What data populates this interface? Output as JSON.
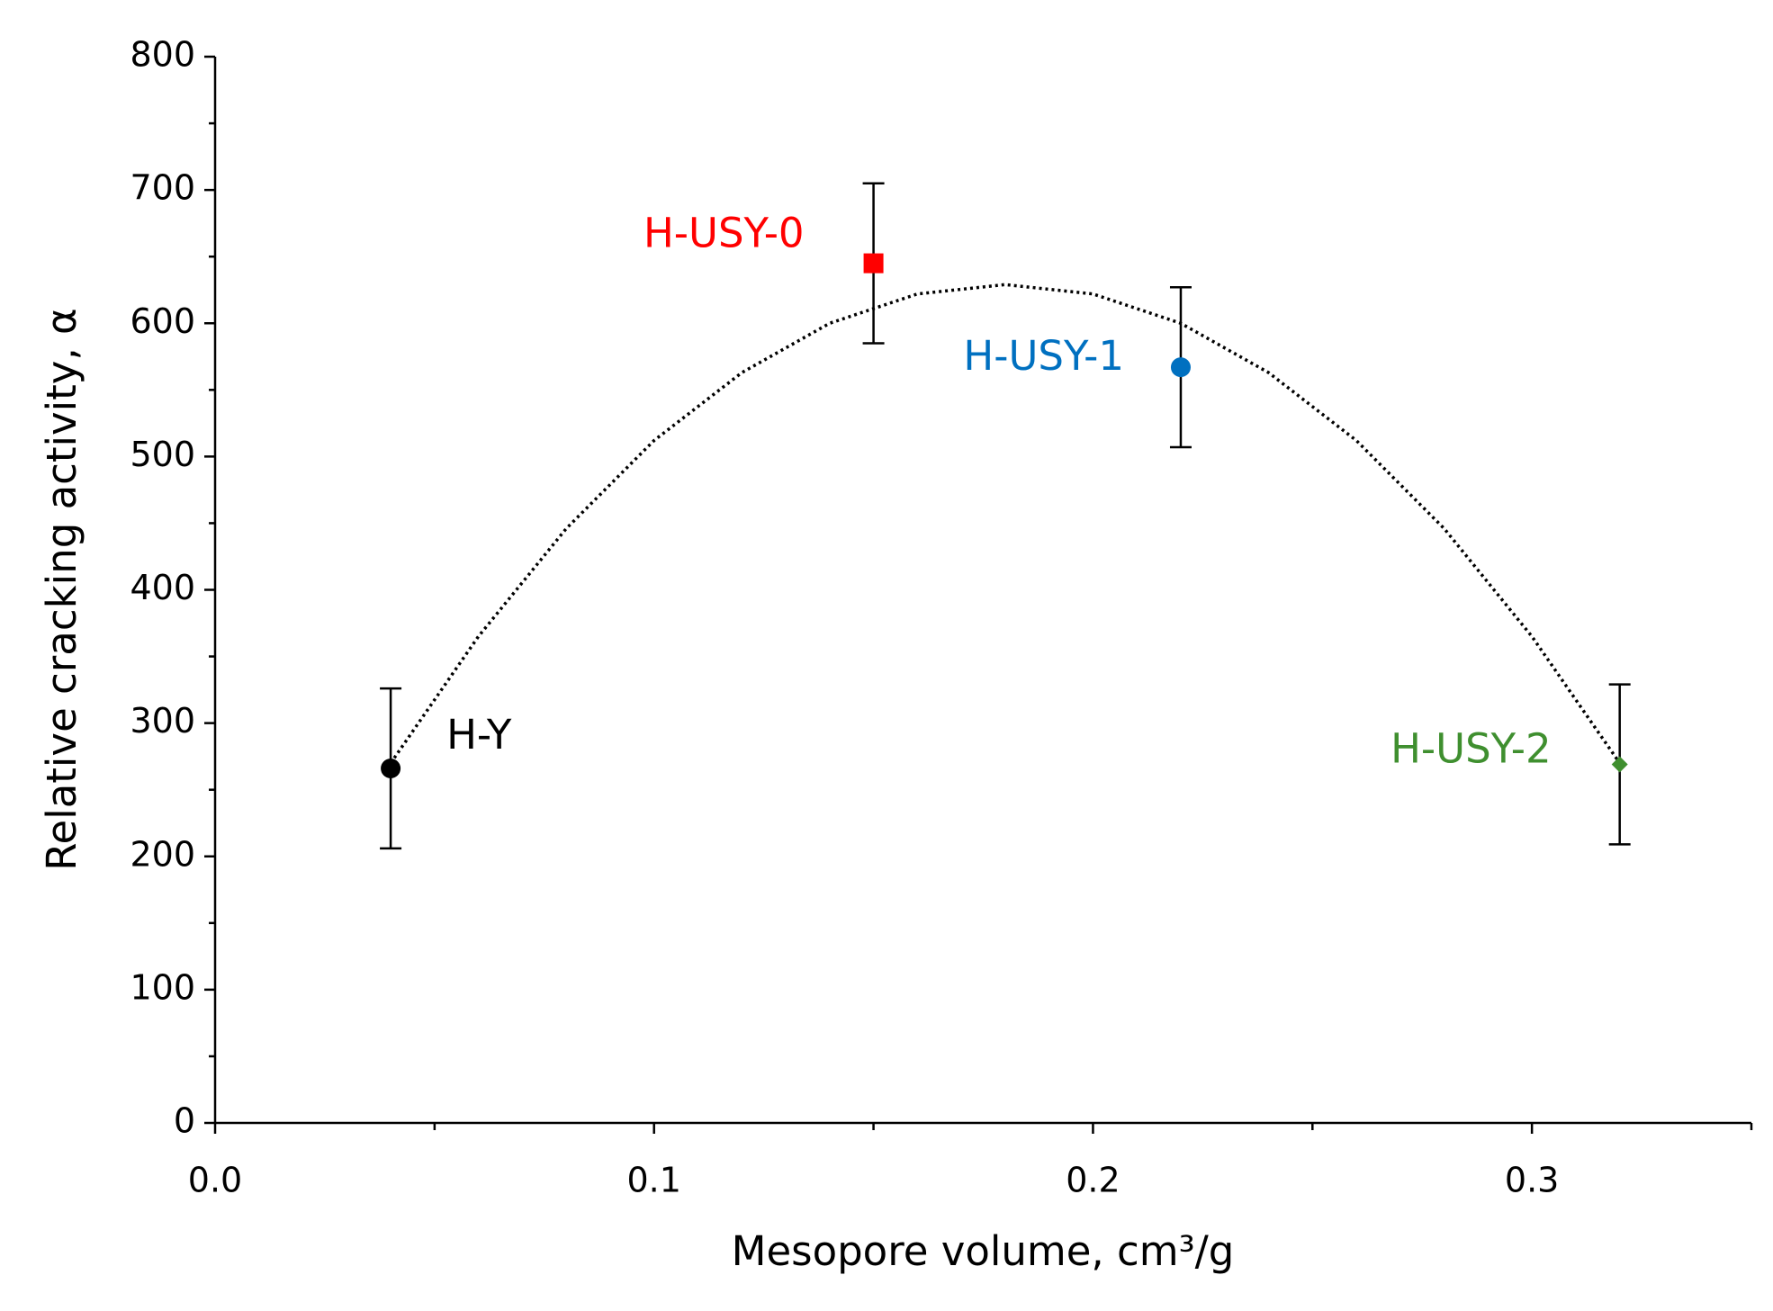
{
  "chart_data": {
    "type": "scatter",
    "xlabel": "Mesopore volume, cm³/g",
    "ylabel": "Relative cracking activity, α",
    "xlim": [
      0,
      0.35
    ],
    "ylim": [
      0,
      800
    ],
    "xticks": [
      {
        "value": 0,
        "label": "0.0"
      },
      0.1,
      0.2,
      0.3
    ],
    "xminorticks": [
      0.05,
      0.15,
      0.25,
      0.35
    ],
    "yticks": [
      0,
      100,
      200,
      300,
      400,
      500,
      600,
      700,
      800
    ],
    "yminorticks": [
      50,
      150,
      250,
      350,
      450,
      550,
      650,
      750
    ],
    "grid": false,
    "series": [
      {
        "name": "H-Y",
        "color": "#000000",
        "marker": "circle",
        "x": [
          0.04
        ],
        "values": [
          266
        ],
        "errors": [
          60
        ]
      },
      {
        "name": "H-USY-0",
        "color": "#ff0000",
        "marker": "square",
        "x": [
          0.15
        ],
        "values": [
          645
        ],
        "errors": [
          60
        ]
      },
      {
        "name": "H-USY-1",
        "color": "#0070c0",
        "marker": "circle",
        "x": [
          0.22
        ],
        "values": [
          567
        ],
        "errors": [
          60
        ]
      },
      {
        "name": "H-USY-2",
        "color": "#3f8f2f",
        "marker": "diamond",
        "x": [
          0.32
        ],
        "values": [
          269
        ],
        "errors": [
          60
        ]
      }
    ],
    "trendline": {
      "style": "dotted",
      "color": "#000000",
      "x": [
        0.04,
        0.06,
        0.08,
        0.1,
        0.12,
        0.14,
        0.16,
        0.18,
        0.2,
        0.22,
        0.24,
        0.26,
        0.28,
        0.3,
        0.32
      ],
      "values": [
        270,
        365,
        446,
        512,
        563,
        600,
        622,
        629,
        622,
        600,
        563,
        512,
        446,
        365,
        270
      ]
    }
  }
}
